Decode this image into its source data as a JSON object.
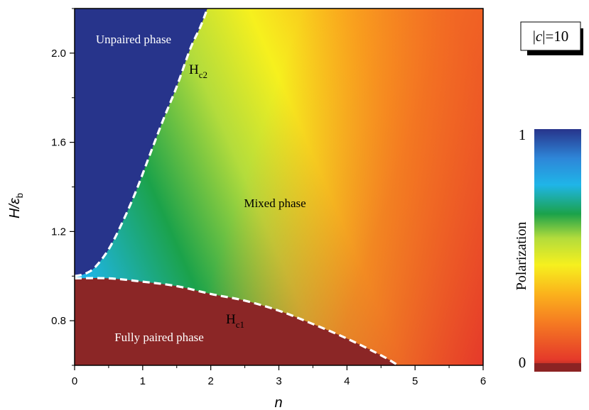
{
  "chart_data": {
    "type": "heatmap",
    "title": "",
    "xlabel": "n",
    "ylabel": {
      "main": "H/ε",
      "sub": "b"
    },
    "xlim": [
      0,
      6
    ],
    "ylim": [
      0.6,
      2.2
    ],
    "x_ticks": [
      "0",
      "1",
      "2",
      "3",
      "4",
      "5",
      "6"
    ],
    "y_ticks": [
      "0.8",
      "1.2",
      "1.6",
      "2.0"
    ],
    "x_tick_values": [
      0,
      1,
      2,
      3,
      4,
      5,
      6
    ],
    "y_tick_values": [
      0.8,
      1.2,
      1.6,
      2.0
    ],
    "boxed_label": {
      "pre": "|",
      "var": "c",
      "post": "|=10"
    },
    "colorbar": {
      "label": "Polarization",
      "min_label": "0",
      "max_label": "1",
      "colors": [
        "#8b2323",
        "#e53a2a",
        "#f57a22",
        "#fbb21c",
        "#f6f01e",
        "#b3dc3c",
        "#1ba24a",
        "#1fb5e8",
        "#2e86d8",
        "#27348b"
      ]
    },
    "regions": [
      {
        "label": "Unpaired phase",
        "color": "#27348b"
      },
      {
        "label": "Mixed phase"
      },
      {
        "label": "Fully paired phase",
        "color": "#8b2626"
      }
    ],
    "curves": [
      {
        "name": "H_c2",
        "main": "H",
        "sub": "c2",
        "style": "white-dashed",
        "x": [
          0.0,
          0.15,
          0.3,
          0.5,
          0.7,
          0.9,
          1.1,
          1.3,
          1.5,
          1.7,
          1.85,
          1.95
        ],
        "y": [
          1.0,
          1.01,
          1.04,
          1.12,
          1.24,
          1.38,
          1.54,
          1.7,
          1.85,
          2.02,
          2.12,
          2.2
        ]
      },
      {
        "name": "H_c1",
        "main": "H",
        "sub": "c1",
        "style": "white-dashed",
        "x": [
          0.0,
          0.5,
          1.0,
          1.5,
          2.0,
          2.5,
          3.0,
          3.5,
          4.0,
          4.5,
          4.75
        ],
        "y": [
          0.99,
          0.99,
          0.975,
          0.955,
          0.92,
          0.89,
          0.845,
          0.785,
          0.72,
          0.645,
          0.6
        ]
      }
    ]
  }
}
